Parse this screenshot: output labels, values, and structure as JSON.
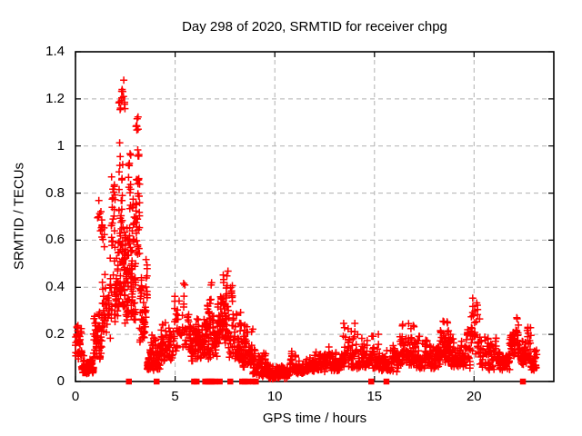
{
  "window": {
    "background": "#ffffff"
  },
  "colors": {
    "foreground": "#000000",
    "text": "#000000",
    "grid": "#b0b0b0",
    "marker": "#ff0000"
  },
  "chart_data": {
    "type": "scatter",
    "title": "Day 298 of 2020, SRMTID for receiver chpg",
    "xlabel": "GPS time / hours",
    "ylabel": "SRMTID / TECUs",
    "xlim": [
      0,
      24
    ],
    "ylim": [
      0,
      1.4
    ],
    "xtick_values": [
      0,
      5,
      10,
      15,
      20
    ],
    "xtick_labels": [
      "0",
      "5",
      "10",
      "15",
      "20"
    ],
    "ytick_values": [
      0,
      0.2,
      0.4,
      0.6,
      0.8,
      1,
      1.2,
      1.4
    ],
    "ytick_labels": [
      "0",
      "0.2",
      "0.4",
      "0.6",
      "0.8",
      "1",
      "1.2",
      "1.4"
    ],
    "grid": true,
    "grid_style": "dashed",
    "legend": "none",
    "marker": "plus",
    "marker_color": "#ff0000",
    "zero_marker": "filled-square",
    "seed": 298,
    "band_format": [
      "t_start_hours",
      "t_end_hours",
      "value_min_TECU",
      "value_max_TECU",
      "n_points"
    ],
    "scatter_bands": [
      [
        0.0,
        0.32,
        0.08,
        0.27,
        45
      ],
      [
        0.32,
        0.9,
        0.03,
        0.14,
        60
      ],
      [
        0.9,
        1.35,
        0.08,
        0.38,
        50
      ],
      [
        1.1,
        1.45,
        0.55,
        1.05,
        16
      ],
      [
        1.35,
        1.8,
        0.18,
        0.74,
        55
      ],
      [
        1.8,
        2.12,
        0.22,
        0.97,
        60
      ],
      [
        2.12,
        2.45,
        0.25,
        1.12,
        80
      ],
      [
        2.15,
        2.52,
        1.13,
        1.31,
        16
      ],
      [
        2.45,
        2.78,
        0.22,
        1.1,
        75
      ],
      [
        2.78,
        3.02,
        0.2,
        1.04,
        60
      ],
      [
        3.02,
        3.22,
        0.45,
        1.26,
        30
      ],
      [
        3.22,
        3.6,
        0.15,
        0.62,
        50
      ],
      [
        3.6,
        4.3,
        0.04,
        0.22,
        95
      ],
      [
        4.3,
        4.9,
        0.08,
        0.26,
        65
      ],
      [
        4.9,
        5.7,
        0.12,
        0.53,
        55
      ],
      [
        5.7,
        6.3,
        0.08,
        0.3,
        65
      ],
      [
        6.3,
        6.6,
        0.1,
        0.44,
        30
      ],
      [
        6.6,
        7.2,
        0.08,
        0.43,
        75
      ],
      [
        7.2,
        7.65,
        0.14,
        0.62,
        65
      ],
      [
        7.65,
        8.3,
        0.08,
        0.46,
        70
      ],
      [
        8.3,
        8.9,
        0.05,
        0.33,
        60
      ],
      [
        8.9,
        9.7,
        0.02,
        0.17,
        75
      ],
      [
        9.7,
        10.8,
        0.01,
        0.1,
        110
      ],
      [
        10.8,
        12.0,
        0.03,
        0.14,
        110
      ],
      [
        12.0,
        13.3,
        0.04,
        0.16,
        115
      ],
      [
        13.3,
        14.2,
        0.05,
        0.27,
        80
      ],
      [
        14.2,
        15.2,
        0.05,
        0.21,
        90
      ],
      [
        15.2,
        16.2,
        0.04,
        0.22,
        90
      ],
      [
        16.2,
        17.0,
        0.06,
        0.26,
        75
      ],
      [
        17.0,
        18.3,
        0.05,
        0.2,
        115
      ],
      [
        18.3,
        18.85,
        0.08,
        0.34,
        50
      ],
      [
        18.85,
        19.8,
        0.05,
        0.25,
        85
      ],
      [
        19.8,
        20.3,
        0.08,
        0.38,
        45
      ],
      [
        20.3,
        21.85,
        0.04,
        0.22,
        130
      ],
      [
        21.85,
        22.35,
        0.08,
        0.31,
        45
      ],
      [
        22.35,
        22.85,
        0.06,
        0.24,
        60
      ],
      [
        22.85,
        23.15,
        0.04,
        0.17,
        25
      ]
    ],
    "zero_flag_times_hours": [
      2.68,
      4.07,
      5.95,
      6.08,
      6.51,
      6.62,
      6.71,
      6.79,
      6.87,
      7.0,
      7.24,
      7.77,
      8.36,
      8.5,
      8.65,
      8.91,
      9.05,
      14.84,
      15.6,
      22.45
    ]
  }
}
